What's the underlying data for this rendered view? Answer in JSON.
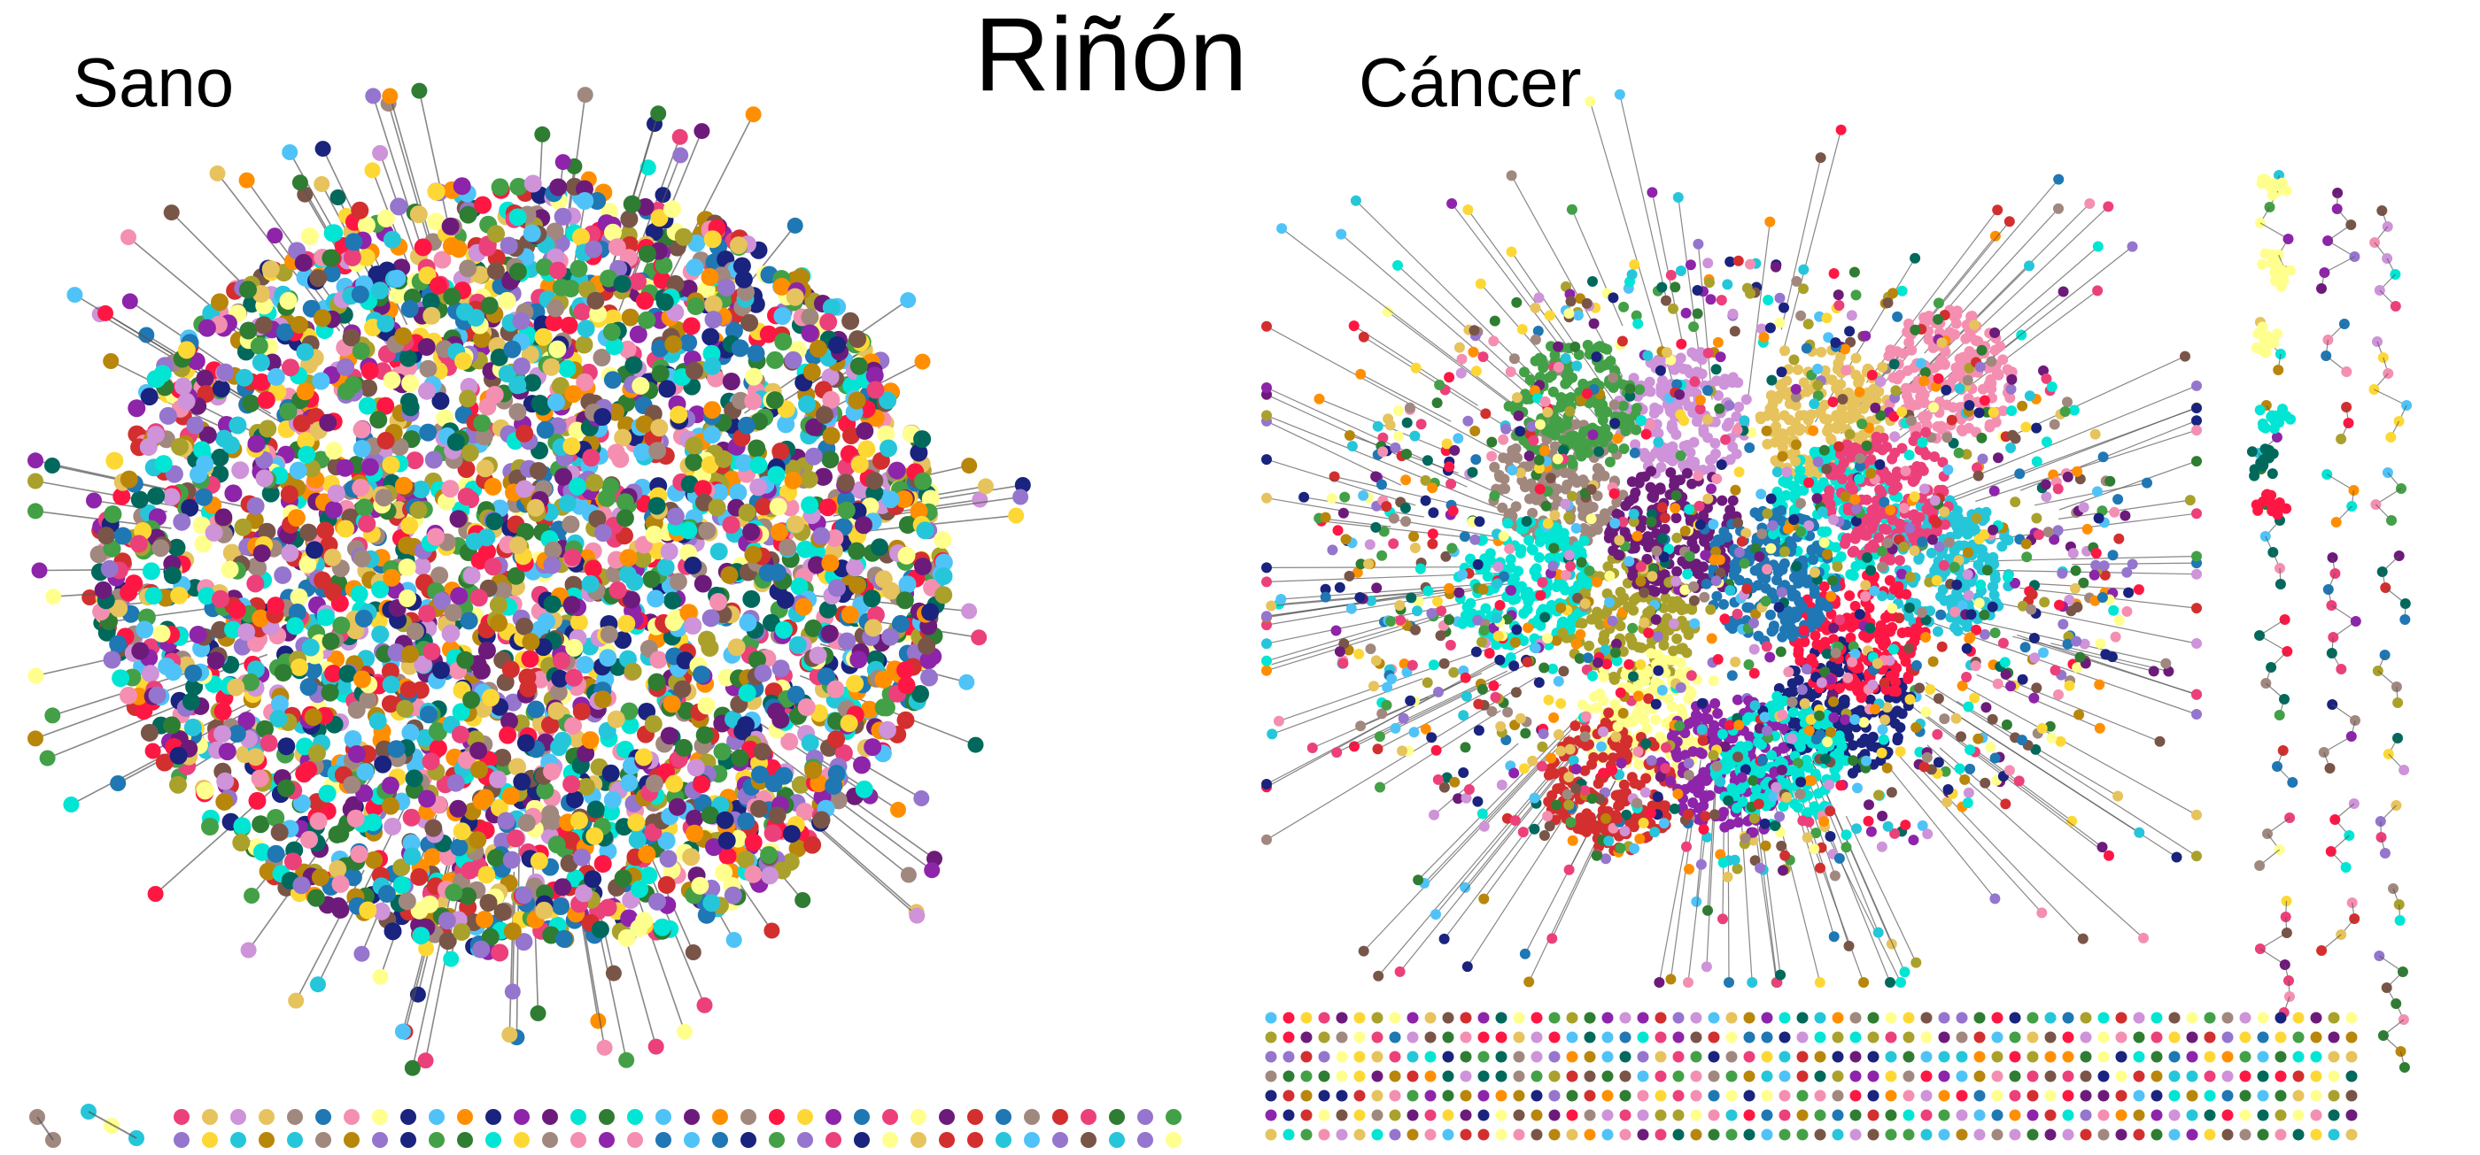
{
  "figure": {
    "title": "Riñón",
    "panels": [
      {
        "label": "Sano"
      },
      {
        "label": "Cáncer"
      }
    ]
  },
  "palette": [
    "#1f77b4",
    "#ff1744",
    "#8e24aa",
    "#fdd835",
    "#00e5d4",
    "#1a237e",
    "#f48fb1",
    "#43a047",
    "#a1887f",
    "#ce93d8",
    "#b8860b",
    "#2e7d32",
    "#d32f2f",
    "#26c6da",
    "#6d1b7b",
    "#ffff8d",
    "#e6c35c",
    "#aaa12c",
    "#795548",
    "#9575cd",
    "#ec407a",
    "#00695c",
    "#4fc3f7",
    "#ff8f00"
  ],
  "colors": {
    "background": "#ffffff",
    "edge": "#555555",
    "text": "#000000"
  }
}
